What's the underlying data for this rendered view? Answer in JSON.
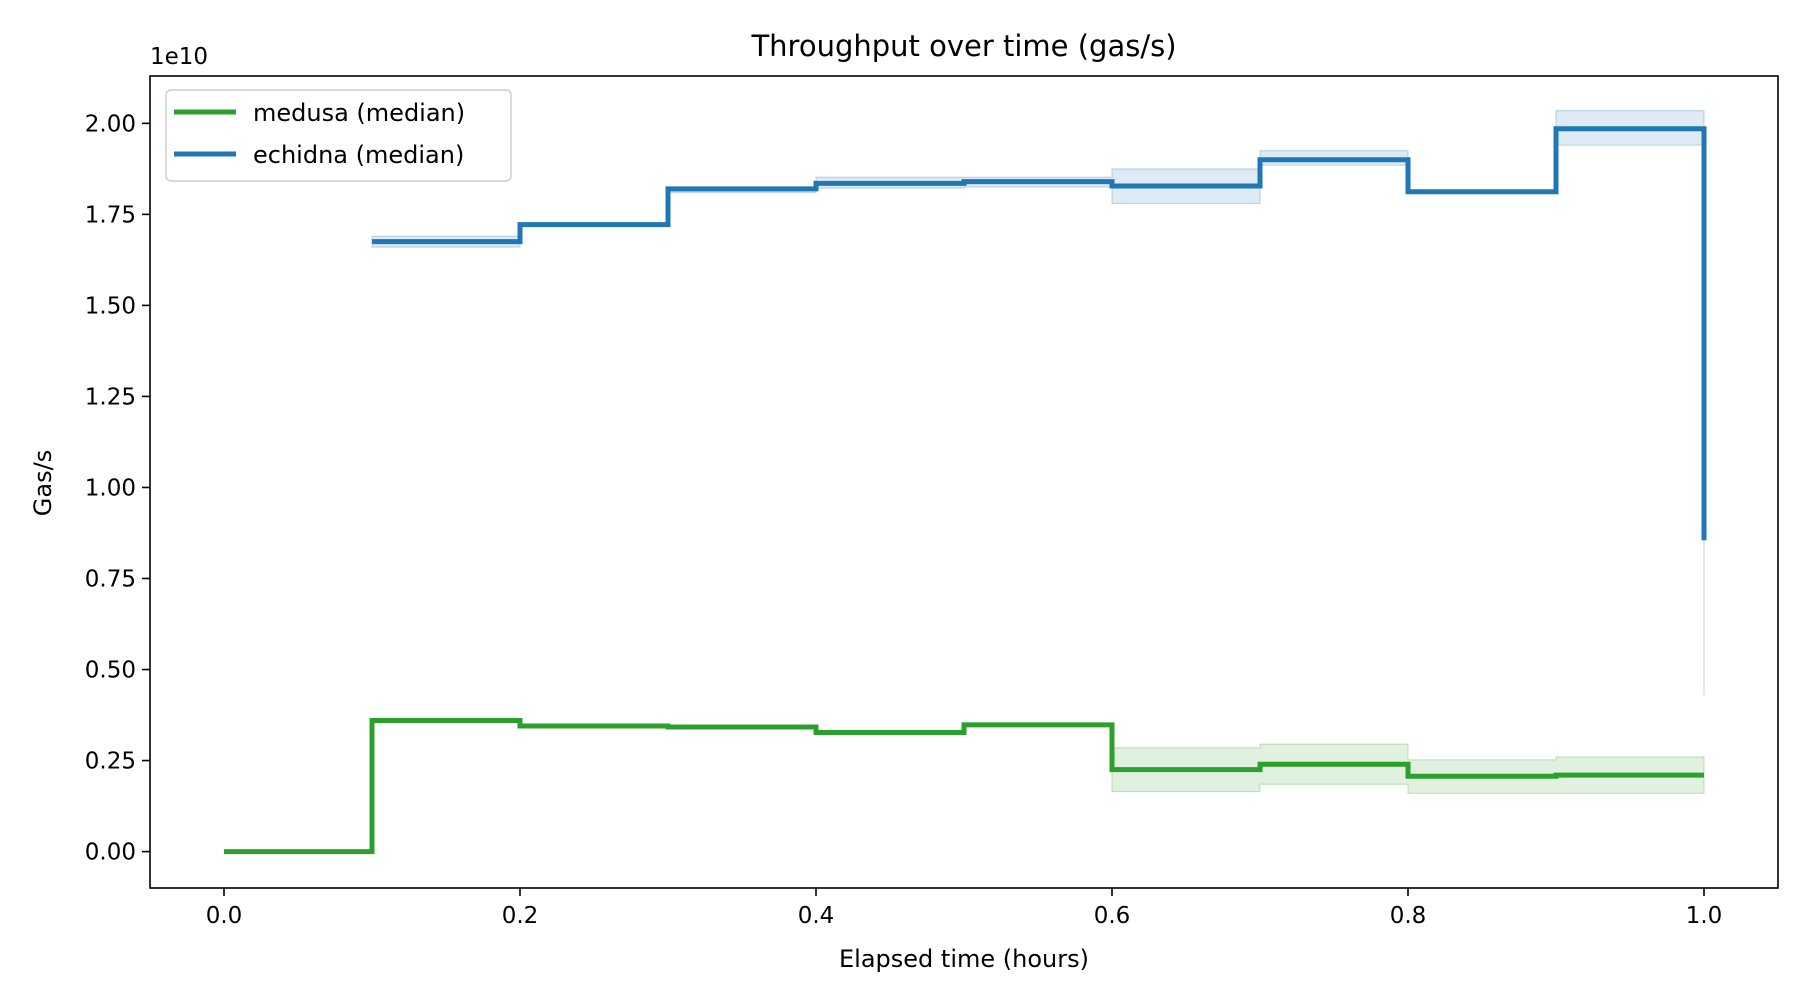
{
  "chart_data": {
    "type": "line",
    "step": "post",
    "title": "Throughput over time (gas/s)",
    "xlabel": "Elapsed time (hours)",
    "ylabel": "Gas/s",
    "offset_text": "1e10",
    "scale": 10000000000,
    "xlim": [
      -0.05,
      1.05
    ],
    "ylim": [
      -0.1,
      2.13
    ],
    "xticks": [
      0.0,
      0.2,
      0.4,
      0.6,
      0.8,
      1.0
    ],
    "xtick_labels": [
      "0.0",
      "0.2",
      "0.4",
      "0.6",
      "0.8",
      "1.0"
    ],
    "yticks": [
      0.0,
      0.25,
      0.5,
      0.75,
      1.0,
      1.25,
      1.5,
      1.75,
      2.0
    ],
    "ytick_labels": [
      "0.00",
      "0.25",
      "0.50",
      "0.75",
      "1.00",
      "1.25",
      "1.50",
      "1.75",
      "2.00"
    ],
    "legend": {
      "placement": "top-left"
    },
    "grid": false,
    "series": [
      {
        "name": "medusa (median)",
        "color": "#2ca02c",
        "x": [
          0.0,
          0.1,
          0.2,
          0.3,
          0.4,
          0.5,
          0.6,
          0.7,
          0.8,
          0.9,
          1.0
        ],
        "y": [
          0.0,
          0.36,
          0.345,
          0.342,
          0.327,
          0.348,
          0.225,
          0.24,
          0.207,
          0.21,
          0.21
        ],
        "band_low": [
          0.0,
          0.36,
          0.345,
          0.342,
          0.327,
          0.348,
          0.165,
          0.185,
          0.16,
          0.16,
          0.16
        ],
        "band_high": [
          0.0,
          0.36,
          0.345,
          0.342,
          0.327,
          0.348,
          0.285,
          0.295,
          0.252,
          0.26,
          0.26
        ]
      },
      {
        "name": "echidna (median)",
        "color": "#1f77b4",
        "x": [
          0.1,
          0.2,
          0.3,
          0.4,
          0.5,
          0.6,
          0.7,
          0.8,
          0.9,
          1.0
        ],
        "y": [
          1.675,
          1.722,
          1.82,
          1.835,
          1.84,
          1.828,
          1.9,
          1.812,
          1.985,
          0.855
        ],
        "band_low": [
          1.66,
          1.722,
          1.81,
          1.822,
          1.825,
          1.78,
          1.885,
          1.812,
          1.94,
          0.43
        ],
        "band_high": [
          1.69,
          1.722,
          1.825,
          1.852,
          1.852,
          1.875,
          1.925,
          1.812,
          2.035,
          0.8
        ]
      }
    ]
  }
}
